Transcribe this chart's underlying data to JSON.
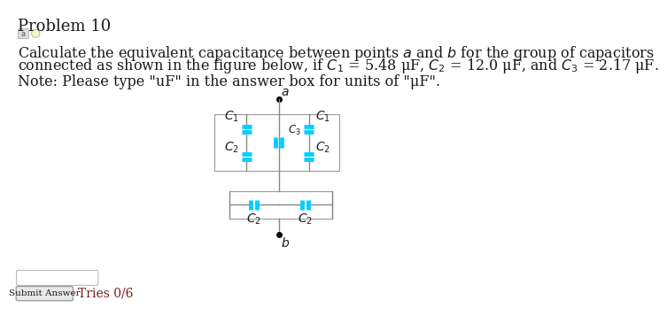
{
  "title": "Problem 10",
  "desc1": "Calculate the equivalent capacitance between points $a$ and $b$ for the group of capacitors",
  "desc2": "connected as shown in the figure below, if $C_1$ = 5.48 μF, $C_2$ = 12.0 μF, and $C_3$ = 2.17 μF.",
  "note": "Note: Please type \"uF\" in the answer box for units of \"μF\".",
  "bg_color": "#ffffff",
  "text_color": "#1a1a1a",
  "dark_red": "#7b2020",
  "cap_color": "#00cfff",
  "wire_color": "#888888",
  "box_color": "#999999",
  "submit_label": "Submit Answer",
  "tries_label": "Tries 0/6",
  "font_size_title": 13,
  "font_size_body": 11.5,
  "font_size_note": 11.5,
  "font_size_cap_label": 10,
  "font_size_tries": 10
}
